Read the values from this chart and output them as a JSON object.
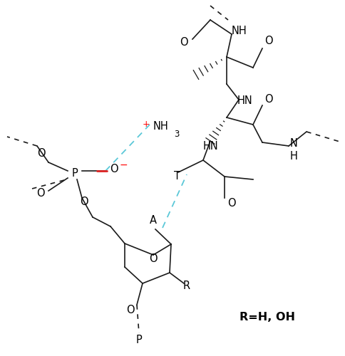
{
  "background_color": "#ffffff",
  "figsize": [
    4.84,
    5.0
  ],
  "dpi": 100,
  "xlim": [
    0,
    484
  ],
  "ylim": [
    0,
    500
  ]
}
